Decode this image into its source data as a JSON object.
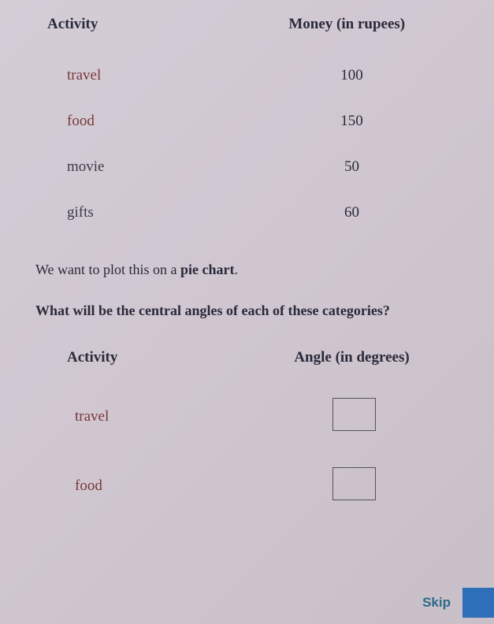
{
  "table1": {
    "headers": {
      "activity": "Activity",
      "money": "Money (in rupees)"
    },
    "rows": [
      {
        "activity": "travel",
        "value": "100",
        "highlight": true
      },
      {
        "activity": "food",
        "value": "150",
        "highlight": true
      },
      {
        "activity": "movie",
        "value": "50",
        "highlight": false
      },
      {
        "activity": "gifts",
        "value": "60",
        "highlight": false
      }
    ]
  },
  "description": {
    "line1_prefix": "We want to plot this on a ",
    "line1_bold": "pie chart",
    "line1_suffix": ".",
    "question": "What will be the central angles of each of these categories?"
  },
  "table2": {
    "headers": {
      "activity": "Activity",
      "angle": "Angle (in degrees)"
    },
    "rows": [
      {
        "activity": "travel",
        "highlight": true
      },
      {
        "activity": "food",
        "highlight": true
      }
    ]
  },
  "skip_label": "Skip"
}
